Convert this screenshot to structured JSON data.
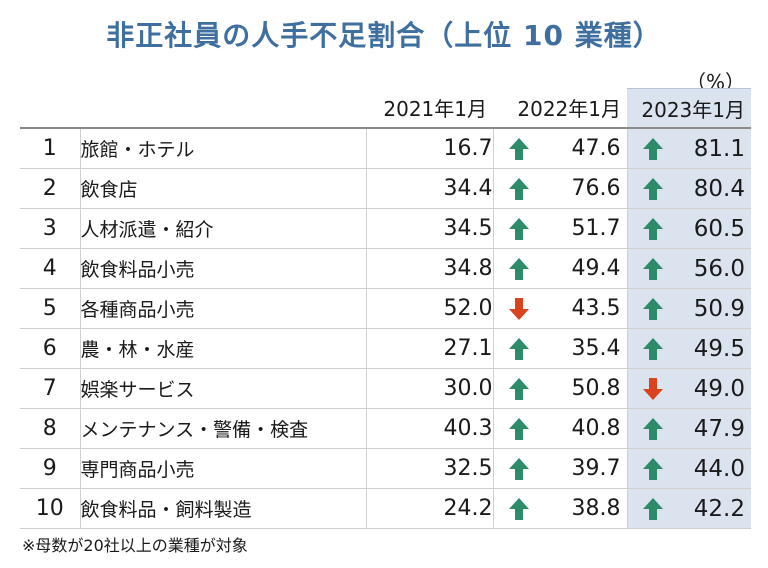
{
  "title": "非正社員の人手不足割合（上位 10 業種）",
  "unit": "（%）",
  "columns": [
    "2021年1月",
    "2022年1月",
    "2023年1月"
  ],
  "colors": {
    "up": "#2e8b6a",
    "down": "#d9431e",
    "title": "#3f6f9f",
    "highlight": "#dbe3ef"
  },
  "rows": [
    {
      "rank": "1",
      "name": "旅館・ホテル",
      "y2021": "16.7",
      "y2022": "47.6",
      "t2022": "up",
      "y2023": "81.1",
      "t2023": "up"
    },
    {
      "rank": "2",
      "name": "飲食店",
      "y2021": "34.4",
      "y2022": "76.6",
      "t2022": "up",
      "y2023": "80.4",
      "t2023": "up"
    },
    {
      "rank": "3",
      "name": "人材派遣・紹介",
      "y2021": "34.5",
      "y2022": "51.7",
      "t2022": "up",
      "y2023": "60.5",
      "t2023": "up"
    },
    {
      "rank": "4",
      "name": "飲食料品小売",
      "y2021": "34.8",
      "y2022": "49.4",
      "t2022": "up",
      "y2023": "56.0",
      "t2023": "up"
    },
    {
      "rank": "5",
      "name": "各種商品小売",
      "y2021": "52.0",
      "y2022": "43.5",
      "t2022": "down",
      "y2023": "50.9",
      "t2023": "up"
    },
    {
      "rank": "6",
      "name": "農・林・水産",
      "y2021": "27.1",
      "y2022": "35.4",
      "t2022": "up",
      "y2023": "49.5",
      "t2023": "up"
    },
    {
      "rank": "7",
      "name": "娯楽サービス",
      "y2021": "30.0",
      "y2022": "50.8",
      "t2022": "up",
      "y2023": "49.0",
      "t2023": "down"
    },
    {
      "rank": "8",
      "name": "メンテナンス・警備・検査",
      "y2021": "40.3",
      "y2022": "40.8",
      "t2022": "up",
      "y2023": "47.9",
      "t2023": "up"
    },
    {
      "rank": "9",
      "name": "専門商品小売",
      "y2021": "32.5",
      "y2022": "39.7",
      "t2022": "up",
      "y2023": "44.0",
      "t2023": "up"
    },
    {
      "rank": "10",
      "name": "飲食料品・飼料製造",
      "y2021": "24.2",
      "y2022": "38.8",
      "t2022": "up",
      "y2023": "42.2",
      "t2023": "up"
    }
  ],
  "note": "※母数が20社以上の業種が対象"
}
